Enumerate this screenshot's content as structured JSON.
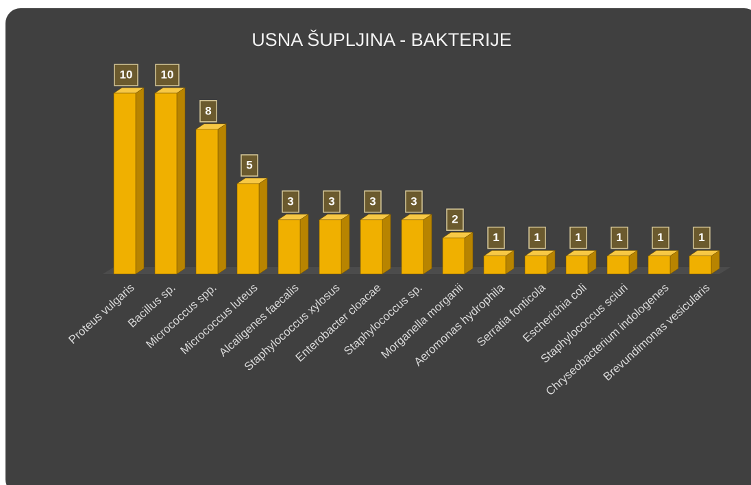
{
  "chart_data": {
    "type": "bar3d",
    "title": "USNA ŠUPLJINA - BAKTERIJE",
    "categories": [
      "Proteus vulgaris",
      "Bacillus sp.",
      "Micrococcus spp.",
      "Micrococcus luteus",
      "Alcaligenes faecalis",
      "Staphylococcus xylosus",
      "Enterobacter cloacae",
      "Staphylococcus sp.",
      "Morganella morganii",
      "Aeromonas hydrophila",
      "Serratia fonticola",
      "Escherichia coli",
      "Staphylococcus sciuri",
      "Chryseobacterium indologenes",
      "Brevundimonas vesicularis"
    ],
    "values": [
      10,
      10,
      8,
      5,
      3,
      3,
      3,
      3,
      2,
      1,
      1,
      1,
      1,
      1,
      1
    ],
    "color": "#f0b000"
  }
}
